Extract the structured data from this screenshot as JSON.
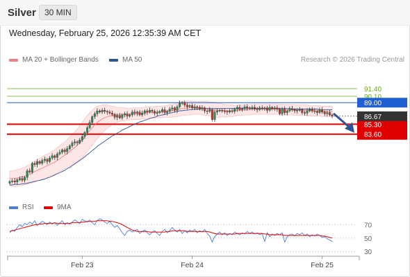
{
  "header": {
    "title": "Silver",
    "timeframe": "30 MIN"
  },
  "timestamp": "Wednesday, February 25, 2026 12:35:39 AM CET",
  "legend": {
    "ma20_bb": {
      "label": "MA 20 + Bollinger Bands",
      "color": "#f08080"
    },
    "ma50": {
      "label": "MA 50",
      "color": "#2f5496"
    },
    "rsi": {
      "label": "RSI",
      "color": "#4a7fd4"
    },
    "rsi9": {
      "label": "9MA",
      "color": "#e00000"
    }
  },
  "credit": "Research © 2026 Trading Central",
  "chart_data": [
    {
      "type": "candlestick",
      "title": "",
      "x_ticks": [
        "Feb 23",
        "Feb 24",
        "Feb 25"
      ],
      "ylim": [
        73.6,
        95.2
      ],
      "last_price": 86.67,
      "levels": [
        {
          "value": 91.4,
          "label": "91.40",
          "kind": "target",
          "color": "#6aaa1e"
        },
        {
          "value": 90.1,
          "label": "90.10",
          "kind": "target",
          "color": "#6aaa1e"
        },
        {
          "value": 89.0,
          "label": "89.00",
          "kind": "pivot",
          "color": "#1e5fd2"
        },
        {
          "value": 85.3,
          "label": "85.30",
          "kind": "support",
          "color": "#e00000"
        },
        {
          "value": 83.6,
          "label": "83.60",
          "kind": "support",
          "color": "#e00000"
        }
      ],
      "close": [
        75.5,
        75.6,
        75.4,
        75.8,
        76.0,
        75.7,
        76.2,
        77.3,
        77.1,
        78.6,
        78.4,
        78.9,
        78.6,
        79.1,
        79.3,
        78.9,
        79.5,
        79.9,
        79.6,
        80.2,
        80.5,
        80.9,
        80.6,
        81.1,
        81.6,
        82.1,
        82.3,
        82.1,
        82.6,
        83.2,
        83.9,
        84.7,
        85.6,
        86.6,
        87.1,
        87.6,
        87.4,
        87.7,
        87.5,
        87.4,
        87.2,
        87.0,
        86.5,
        86.8,
        86.4,
        86.9,
        87.1,
        86.7,
        86.9,
        87.4,
        87.2,
        87.4,
        86.9,
        87.2,
        87.6,
        87.4,
        87.7,
        87.5,
        87.2,
        87.3,
        87.5,
        87.8,
        87.3,
        87.5,
        87.9,
        88.1,
        87.7,
        88.3,
        88.9,
        89.0,
        88.6,
        88.3,
        88.5,
        88.1,
        88.3,
        88.2,
        87.9,
        88.1,
        87.6,
        87.5,
        87.8,
        86.1,
        87.4,
        87.6,
        87.7,
        87.6,
        87.5,
        87.4,
        87.6,
        87.5,
        87.9,
        88.2,
        87.8,
        88.0,
        88.3,
        88.1,
        88.0,
        88.2,
        88.0,
        87.8,
        88.1,
        88.0,
        88.1,
        87.7,
        88.2,
        88.0,
        88.1,
        87.9,
        87.1,
        87.9,
        87.3,
        87.6,
        88.0,
        87.8,
        87.6,
        87.7,
        87.8,
        87.3,
        87.2,
        87.6,
        87.9,
        87.6,
        87.5,
        87.3,
        87.8,
        87.4,
        87.1,
        87.3,
        86.9,
        86.67
      ],
      "ma20": [
        76.0,
        76.0,
        76.0,
        76.1,
        76.2,
        76.3,
        76.4,
        76.6,
        76.7,
        77.0,
        77.2,
        77.4,
        77.6,
        77.8,
        78.0,
        78.2,
        78.4,
        78.6,
        78.8,
        79.1,
        79.4,
        79.7,
        80.0,
        80.3,
        80.6,
        81.0,
        81.3,
        81.7,
        82.1,
        82.6,
        83.1,
        83.7,
        84.2,
        84.7,
        85.2,
        85.6,
        85.9,
        86.2,
        86.4,
        86.6,
        86.7,
        86.8,
        86.9,
        86.9,
        87.0,
        87.0,
        87.0,
        87.0,
        87.0,
        87.1,
        87.1,
        87.1,
        87.1,
        87.2,
        87.2,
        87.3,
        87.3,
        87.3,
        87.3,
        87.4,
        87.4,
        87.4,
        87.5,
        87.5,
        87.6,
        87.6,
        87.7,
        87.8,
        87.9,
        88.0,
        88.0,
        88.1,
        88.1,
        88.1,
        88.1,
        88.1,
        88.1,
        88.1,
        88.0,
        88.0,
        87.9,
        87.8,
        87.8,
        87.7,
        87.7,
        87.7,
        87.6,
        87.6,
        87.6,
        87.6,
        87.6,
        87.7,
        87.7,
        87.7,
        87.8,
        87.8,
        87.8,
        87.9,
        87.9,
        87.9,
        87.9,
        87.9,
        87.9,
        87.9,
        87.9,
        87.9,
        87.9,
        87.9,
        87.8,
        87.8,
        87.8,
        87.8,
        87.8,
        87.8,
        87.8,
        87.7,
        87.7,
        87.7,
        87.7,
        87.7,
        87.6,
        87.6,
        87.6,
        87.6,
        87.6,
        87.5,
        87.5,
        87.5,
        87.5,
        87.4
      ],
      "ma50": [
        74.9,
        74.9,
        75.0,
        75.0,
        75.0,
        75.1,
        75.1,
        75.2,
        75.3,
        75.4,
        75.5,
        75.6,
        75.7,
        75.8,
        75.9,
        76.1,
        76.2,
        76.4,
        76.6,
        76.8,
        77.0,
        77.2,
        77.4,
        77.7,
        77.9,
        78.2,
        78.5,
        78.8,
        79.1,
        79.4,
        79.7,
        80.1,
        80.4,
        80.8,
        81.1,
        81.5,
        81.8,
        82.1,
        82.4,
        82.7,
        83.0,
        83.3,
        83.5,
        83.8,
        84.0,
        84.3,
        84.5,
        84.7,
        84.9,
        85.1,
        85.3,
        85.5,
        85.7,
        85.8,
        86.0,
        86.1,
        86.3,
        86.4,
        86.5,
        86.7,
        86.8,
        86.9,
        87.0,
        87.1,
        87.2,
        87.3,
        87.4,
        87.5,
        87.6,
        87.6,
        87.7,
        87.7,
        87.8,
        87.8,
        87.9,
        87.9,
        87.9,
        88.0,
        88.0,
        88.0,
        88.0,
        88.0,
        88.0,
        88.0,
        88.0,
        88.0,
        88.0,
        88.0,
        88.0,
        88.0,
        88.0,
        88.0,
        88.0,
        88.0,
        88.0,
        88.0,
        88.0,
        88.0,
        88.0,
        88.0,
        88.0,
        88.0,
        88.0,
        88.0,
        88.0,
        88.0,
        88.0,
        88.0,
        88.0,
        88.0,
        88.0,
        88.0,
        88.0,
        87.9,
        87.9,
        87.9,
        87.9,
        87.9,
        87.9,
        87.9,
        87.9,
        87.9,
        87.9,
        87.9,
        87.8,
        87.8,
        87.8,
        87.8,
        87.8,
        87.8
      ],
      "bb_width": [
        1.3,
        1.3,
        1.4,
        1.4,
        1.4,
        1.5,
        1.5,
        1.6,
        1.6,
        1.7,
        1.8,
        1.8,
        1.9,
        1.9,
        2.0,
        2.0,
        2.0,
        2.1,
        2.1,
        2.2,
        2.2,
        2.3,
        2.3,
        2.4,
        2.5,
        2.6,
        2.7,
        2.8,
        2.9,
        3.0,
        3.1,
        3.1,
        3.1,
        3.0,
        2.9,
        2.8,
        2.6,
        2.4,
        2.2,
        2.0,
        1.8,
        1.6,
        1.4,
        1.3,
        1.2,
        1.1,
        1.1,
        1.0,
        1.0,
        1.0,
        1.0,
        1.0,
        1.0,
        1.0,
        1.0,
        1.0,
        1.0,
        1.0,
        1.0,
        1.0,
        1.0,
        1.0,
        1.0,
        1.0,
        1.1,
        1.1,
        1.1,
        1.2,
        1.2,
        1.2,
        1.2,
        1.2,
        1.2,
        1.1,
        1.1,
        1.1,
        1.1,
        1.1,
        1.2,
        1.2,
        1.2,
        1.3,
        1.3,
        1.2,
        1.2,
        1.1,
        1.1,
        1.0,
        1.0,
        1.0,
        0.9,
        0.9,
        0.9,
        0.9,
        0.9,
        0.9,
        0.9,
        0.9,
        0.9,
        0.9,
        0.9,
        0.9,
        0.9,
        0.9,
        0.9,
        0.9,
        0.9,
        0.9,
        0.9,
        0.9,
        0.9,
        0.9,
        0.9,
        0.9,
        0.9,
        0.9,
        0.9,
        0.9,
        0.9,
        0.9,
        0.9,
        0.9,
        0.9,
        0.9,
        0.9,
        0.9,
        0.9,
        0.9,
        0.9,
        0.9
      ]
    },
    {
      "type": "line",
      "title": "",
      "ylim": [
        25,
        85
      ],
      "y_ticks": [
        30,
        50,
        70
      ],
      "series": [
        {
          "name": "RSI",
          "values": [
            58,
            62,
            60,
            66,
            70,
            67,
            72,
            70,
            74,
            71,
            76,
            69,
            72,
            75,
            73,
            70,
            74,
            71,
            73,
            69,
            72,
            76,
            70,
            73,
            71,
            74,
            77,
            75,
            72,
            78,
            76,
            74,
            77,
            73,
            70,
            76,
            79,
            77,
            74,
            72,
            75,
            70,
            66,
            69,
            64,
            58,
            54,
            60,
            62,
            59,
            61,
            63,
            57,
            60,
            62,
            58,
            55,
            59,
            61,
            57,
            54,
            60,
            63,
            58,
            61,
            66,
            62,
            59,
            63,
            57,
            61,
            58,
            62,
            60,
            63,
            58,
            61,
            59,
            63,
            57,
            53,
            44,
            52,
            56,
            59,
            55,
            58,
            54,
            57,
            55,
            59,
            57,
            55,
            58,
            56,
            60,
            57,
            59,
            56,
            58,
            55,
            57,
            45,
            58,
            52,
            56,
            54,
            57,
            55,
            58,
            44,
            52,
            55,
            56,
            53,
            57,
            55,
            58,
            54,
            56,
            52,
            55,
            53,
            56,
            54,
            51,
            52,
            49,
            47,
            45
          ]
        },
        {
          "name": "9MA",
          "values": [
            60,
            61,
            62,
            63,
            64,
            65,
            66,
            67,
            68,
            69,
            70,
            70,
            71,
            71,
            72,
            72,
            72,
            72,
            73,
            72,
            72,
            72,
            72,
            72,
            72,
            73,
            73,
            73,
            73,
            74,
            74,
            75,
            75,
            75,
            75,
            76,
            76,
            76,
            76,
            76,
            75,
            75,
            74,
            73,
            72,
            70,
            68,
            66,
            64,
            62,
            61,
            60,
            60,
            60,
            60,
            60,
            59,
            59,
            59,
            59,
            59,
            59,
            59,
            60,
            60,
            61,
            61,
            61,
            61,
            61,
            61,
            60,
            60,
            60,
            60,
            60,
            60,
            60,
            60,
            60,
            59,
            58,
            57,
            56,
            56,
            56,
            56,
            56,
            56,
            56,
            56,
            57,
            57,
            57,
            57,
            57,
            57,
            57,
            57,
            57,
            57,
            57,
            56,
            56,
            55,
            55,
            55,
            55,
            55,
            55,
            54,
            54,
            54,
            54,
            54,
            54,
            54,
            54,
            54,
            54,
            54,
            54,
            54,
            54,
            54,
            53,
            53,
            52,
            51,
            50
          ]
        }
      ]
    }
  ]
}
